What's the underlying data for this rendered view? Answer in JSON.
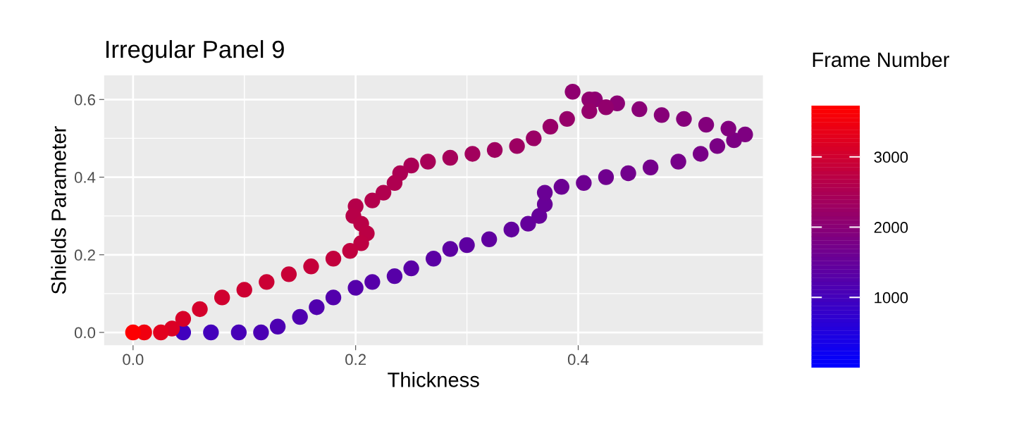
{
  "chart_data": {
    "type": "scatter",
    "title": "Irregular Panel 9",
    "xlabel": "Thickness",
    "ylabel": "Shields Parameter",
    "legend_title": "Frame Number",
    "x": [
      0.045,
      0.07,
      0.095,
      0.115,
      0.13,
      0.15,
      0.165,
      0.18,
      0.2,
      0.215,
      0.235,
      0.25,
      0.27,
      0.285,
      0.3,
      0.32,
      0.34,
      0.355,
      0.365,
      0.37,
      0.37,
      0.385,
      0.405,
      0.425,
      0.445,
      0.465,
      0.49,
      0.51,
      0.525,
      0.54,
      0.55,
      0.535,
      0.515,
      0.495,
      0.475,
      0.455,
      0.435,
      0.415,
      0.395,
      0.41,
      0.425,
      0.41,
      0.39,
      0.375,
      0.36,
      0.345,
      0.325,
      0.305,
      0.285,
      0.265,
      0.25,
      0.24,
      0.235,
      0.225,
      0.215,
      0.2,
      0.198,
      0.205,
      0.21,
      0.205,
      0.195,
      0.18,
      0.16,
      0.14,
      0.12,
      0.1,
      0.08,
      0.06,
      0.045,
      0.035,
      0.025,
      0.01,
      0.0
    ],
    "values": [
      0,
      0,
      0,
      0,
      0.015,
      0.04,
      0.065,
      0.09,
      0.115,
      0.13,
      0.145,
      0.165,
      0.19,
      0.215,
      0.225,
      0.24,
      0.265,
      0.28,
      0.3,
      0.33,
      0.36,
      0.375,
      0.385,
      0.4,
      0.41,
      0.425,
      0.44,
      0.46,
      0.48,
      0.495,
      0.51,
      0.525,
      0.535,
      0.55,
      0.56,
      0.575,
      0.59,
      0.6,
      0.62,
      0.6,
      0.58,
      0.57,
      0.55,
      0.53,
      0.5,
      0.48,
      0.47,
      0.46,
      0.45,
      0.44,
      0.43,
      0.41,
      0.385,
      0.36,
      0.34,
      0.325,
      0.3,
      0.28,
      0.255,
      0.23,
      0.21,
      0.19,
      0.17,
      0.15,
      0.13,
      0.11,
      0.09,
      0.06,
      0.035,
      0.01,
      0,
      0,
      0
    ],
    "cvalues": [
      950,
      1000,
      1050,
      1100,
      1130,
      1160,
      1190,
      1210,
      1240,
      1260,
      1280,
      1300,
      1330,
      1360,
      1380,
      1410,
      1440,
      1460,
      1490,
      1520,
      1550,
      1580,
      1610,
      1640,
      1670,
      1700,
      1730,
      1760,
      1790,
      1820,
      1850,
      1880,
      1910,
      1940,
      1970,
      2000,
      2030,
      2060,
      2090,
      2110,
      2130,
      2160,
      2190,
      2220,
      2250,
      2290,
      2330,
      2370,
      2410,
      2450,
      2490,
      2520,
      2550,
      2580,
      2610,
      2640,
      2670,
      2700,
      2730,
      2760,
      2800,
      2840,
      2880,
      2920,
      2960,
      3000,
      3040,
      3090,
      3140,
      3200,
      3300,
      3500,
      3700
    ],
    "clim": [
      0,
      3730
    ],
    "cticks": [
      1000,
      2000,
      3000
    ],
    "xlim": [
      -0.026,
      0.566
    ],
    "xticks": [
      {
        "value": 0,
        "label": "0.0"
      },
      0.2,
      0.4
    ],
    "ylim": [
      -0.033,
      0.662
    ],
    "yticks": [
      {
        "value": 0,
        "label": "0.0"
      },
      0.2,
      0.4,
      0.6
    ],
    "grid": true,
    "marker": "circle"
  }
}
